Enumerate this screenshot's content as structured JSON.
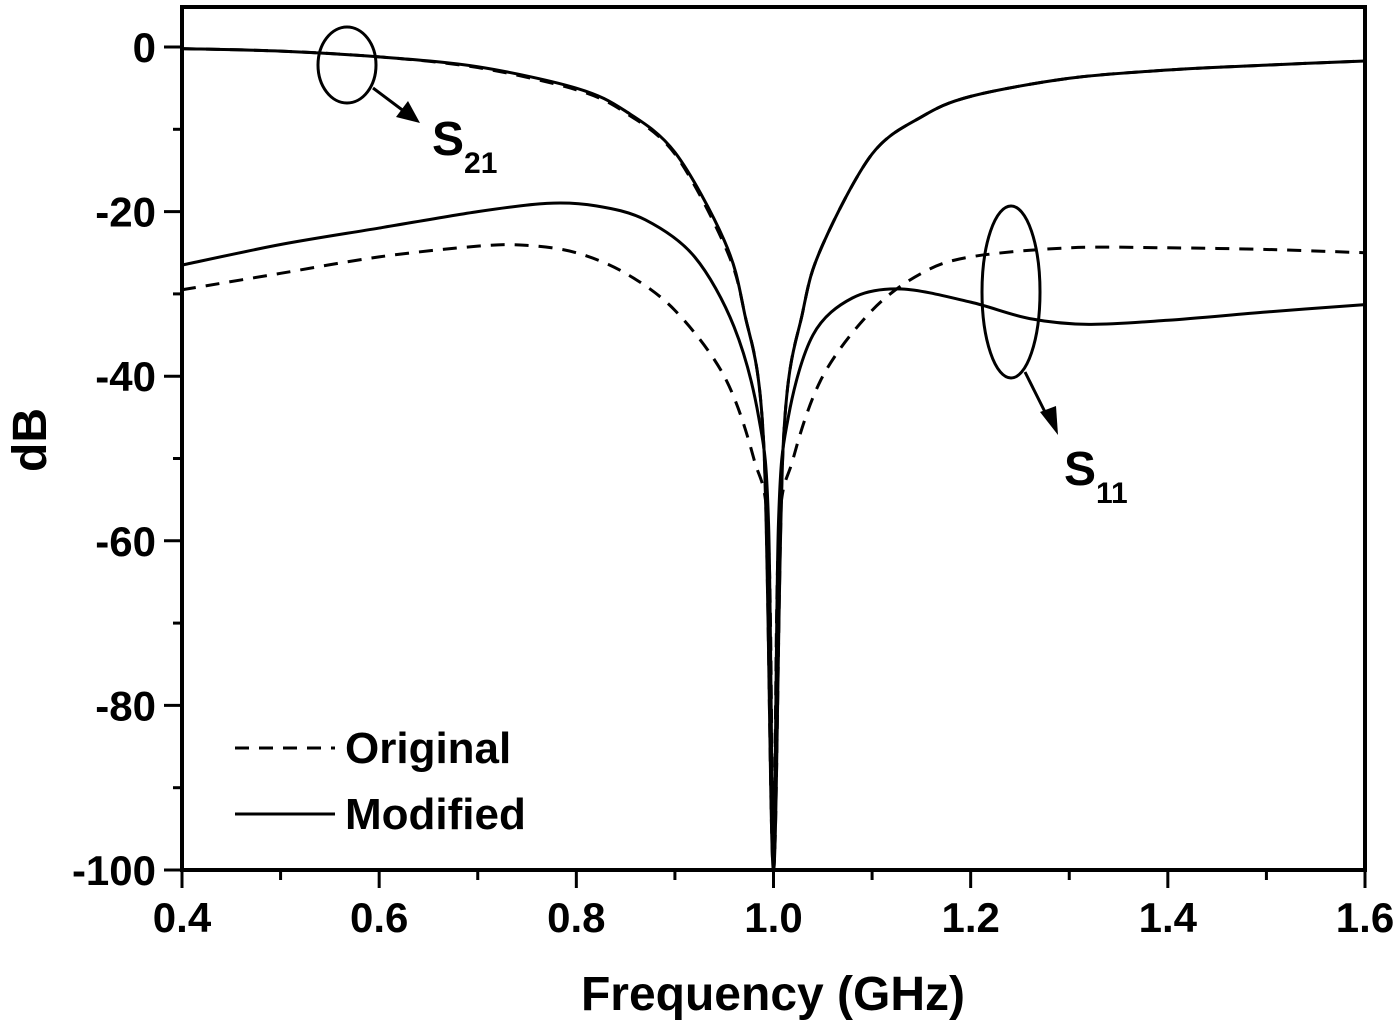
{
  "chart_data": {
    "type": "line",
    "title": "",
    "xlabel": "Frequency (GHz)",
    "ylabel": "dB",
    "xlim": [
      0.4,
      1.6
    ],
    "ylim": [
      -100,
      5
    ],
    "xticks": [
      0.4,
      0.6,
      0.8,
      1.0,
      1.2,
      1.4,
      1.6
    ],
    "xtick_labels": [
      "0.4",
      "0.6",
      "0.8",
      "1.0",
      "1.2",
      "1.4",
      "1.6"
    ],
    "yticks": [
      0,
      -20,
      -40,
      -60,
      -80,
      -100
    ],
    "ytick_labels": [
      "0",
      "-20",
      "-40",
      "-60",
      "-80",
      "-100"
    ],
    "grid": false,
    "legend": {
      "position": "lower-left",
      "entries": [
        {
          "label": "Original",
          "style": "dashed"
        },
        {
          "label": "Modified",
          "style": "solid"
        }
      ]
    },
    "annotations": [
      {
        "text": "S",
        "subscript": "21",
        "target": "S21 curves (ellipse near 0.57 GHz, -2 dB)"
      },
      {
        "text": "S",
        "subscript": "11",
        "target": "S11 curves (ellipse near 1.24 GHz, -30 dB)"
      }
    ],
    "series": [
      {
        "name": "S21 Original",
        "style": "dashed",
        "x": [
          0.4,
          0.5,
          0.6,
          0.7,
          0.8,
          0.85,
          0.9,
          0.95,
          0.97,
          0.99,
          1.0,
          1.01,
          1.03,
          1.05,
          1.1,
          1.15,
          1.2,
          1.3,
          1.4,
          1.5,
          1.6
        ],
        "y": [
          -0.2,
          -0.5,
          -1.2,
          -2.5,
          -5.2,
          -8,
          -13,
          -24,
          -32,
          -48,
          -100,
          -48,
          -32,
          -24,
          -13,
          -8.5,
          -6,
          -3.8,
          -2.8,
          -2.2,
          -1.7
        ]
      },
      {
        "name": "S21 Modified",
        "style": "solid",
        "x": [
          0.4,
          0.5,
          0.6,
          0.7,
          0.8,
          0.85,
          0.9,
          0.95,
          0.97,
          0.99,
          1.0,
          1.01,
          1.03,
          1.05,
          1.1,
          1.15,
          1.2,
          1.3,
          1.4,
          1.5,
          1.6
        ],
        "y": [
          -0.2,
          -0.5,
          -1.2,
          -2.4,
          -5.0,
          -7.8,
          -12.8,
          -23.5,
          -32,
          -48,
          -100,
          -48,
          -32,
          -24,
          -13,
          -8.5,
          -6,
          -3.8,
          -2.8,
          -2.2,
          -1.7
        ]
      },
      {
        "name": "S11 Original",
        "style": "dashed",
        "x": [
          0.4,
          0.5,
          0.6,
          0.7,
          0.75,
          0.8,
          0.85,
          0.9,
          0.95,
          0.98,
          0.995,
          1.0,
          1.005,
          1.02,
          1.05,
          1.1,
          1.15,
          1.2,
          1.3,
          1.4,
          1.5,
          1.6
        ],
        "y": [
          -29.5,
          -27.5,
          -25.5,
          -24.2,
          -24.1,
          -25,
          -27.5,
          -32,
          -40,
          -50,
          -60,
          -100,
          -60,
          -50,
          -40,
          -32,
          -27.5,
          -25.5,
          -24.4,
          -24.4,
          -24.6,
          -25
        ]
      },
      {
        "name": "S11 Modified",
        "style": "solid",
        "x": [
          0.4,
          0.5,
          0.6,
          0.7,
          0.77,
          0.82,
          0.87,
          0.92,
          0.96,
          0.985,
          0.995,
          1.0,
          1.005,
          1.015,
          1.04,
          1.08,
          1.13,
          1.2,
          1.26,
          1.32,
          1.4,
          1.5,
          1.6
        ],
        "y": [
          -26.5,
          -24,
          -22,
          -20,
          -19,
          -19.3,
          -21,
          -25.5,
          -34,
          -45,
          -58,
          -100,
          -58,
          -45,
          -35,
          -30.5,
          -29.4,
          -31,
          -33,
          -33.7,
          -33.2,
          -32.2,
          -31.3
        ]
      }
    ]
  },
  "legend": {
    "original_label": "Original",
    "modified_label": "Modified"
  },
  "annotations": {
    "s21_main": "S",
    "s21_sub": "21",
    "s11_main": "S",
    "s11_sub": "11"
  },
  "axes": {
    "xlabel": "Frequency (GHz)",
    "ylabel": "dB"
  }
}
